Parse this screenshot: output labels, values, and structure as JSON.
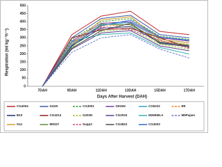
{
  "chart_data": {
    "type": "line",
    "y_label": "Respiration (ml kg⁻¹h⁻¹)",
    "x_label": "Days After Harvest (DAH)",
    "categories": [
      "7DAH",
      "9DAH",
      "11DAH",
      "13DAH",
      "15DAH",
      "17DAH"
    ],
    "ylim": [
      0,
      500
    ],
    "yticks": [
      0,
      50,
      100,
      150,
      200,
      250,
      300,
      350,
      400,
      450,
      500
    ],
    "series": [
      {
        "name": "CG4004",
        "color": "#c0272d",
        "values": [
          0,
          320,
          435,
          465,
          340,
          320
        ]
      },
      {
        "name": "G41N",
        "color": "#3b5ba5",
        "values": [
          0,
          300,
          420,
          440,
          320,
          300
        ]
      },
      {
        "name": "CG3001",
        "color": "#3a9a3a",
        "values": [
          0,
          290,
          400,
          420,
          310,
          290
        ]
      },
      {
        "name": "G915N",
        "color": "#7a3b9a",
        "values": [
          0,
          280,
          390,
          400,
          300,
          280
        ]
      },
      {
        "name": "CG5222",
        "color": "#2aa6c8",
        "values": [
          0,
          270,
          380,
          395,
          290,
          270
        ]
      },
      {
        "name": "B9",
        "color": "#e8872a",
        "values": [
          0,
          260,
          370,
          385,
          280,
          260
        ]
      },
      {
        "name": "B10",
        "color": "#1f2f6f",
        "values": [
          0,
          250,
          360,
          370,
          270,
          250
        ]
      },
      {
        "name": "CG4214",
        "color": "#8c1c1c",
        "values": [
          0,
          300,
          350,
          360,
          300,
          240
        ]
      },
      {
        "name": "G202N",
        "color": "#9cc43c",
        "values": [
          0,
          240,
          340,
          355,
          260,
          230
        ]
      },
      {
        "name": "CG2034",
        "color": "#5a3a8a",
        "values": [
          0,
          230,
          330,
          345,
          250,
          220
        ]
      },
      {
        "name": "M26EMLA",
        "color": "#3ab0b0",
        "values": [
          0,
          280,
          320,
          330,
          240,
          200
        ]
      },
      {
        "name": "M9Pajam",
        "color": "#6a7ad0",
        "values": [
          0,
          210,
          300,
          320,
          230,
          175
        ]
      },
      {
        "name": "G11",
        "color": "#d0a02a",
        "values": [
          0,
          260,
          410,
          430,
          290,
          270
        ]
      },
      {
        "name": "M9337",
        "color": "#5a8a3a",
        "values": [
          0,
          245,
          385,
          380,
          275,
          255
        ]
      },
      {
        "name": "Supp3",
        "color": "#d04a8a",
        "values": [
          0,
          275,
          365,
          350,
          285,
          235
        ]
      },
      {
        "name": "CG4824",
        "color": "#4a4a4a",
        "values": [
          0,
          235,
          345,
          390,
          265,
          245
        ]
      },
      {
        "name": "CG4003",
        "color": "#2a6ad0",
        "values": [
          0,
          255,
          375,
          410,
          305,
          285
        ]
      }
    ]
  }
}
